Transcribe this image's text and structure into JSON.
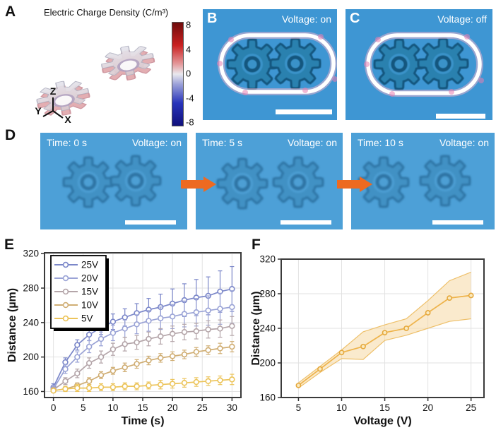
{
  "colors": {
    "micro_bg": "#3e96d3",
    "micro_bg_d": "#4da0d7",
    "gear_body": "#2a81af",
    "gear_edge": "#14567e",
    "ring_white": "#ffffff",
    "ring_pink": "#f2b3cd",
    "arrow_orange": "#ed6a21",
    "axis_dark": "#3a3a3a"
  },
  "panelA": {
    "label": "A",
    "title": "Electric Charge Density (C/m³)",
    "colorbar_ticks": [
      "8",
      "4",
      "0",
      "-4",
      "-8"
    ],
    "triad": {
      "up": "Z",
      "left": "Y",
      "right": "X"
    }
  },
  "panelB": {
    "label": "B",
    "status": "Voltage: on"
  },
  "panelC": {
    "label": "C",
    "status": "Voltage: off"
  },
  "panelD": {
    "label": "D",
    "frames": [
      {
        "time": "Time: 0 s",
        "status": "Voltage: on"
      },
      {
        "time": "Time: 5 s",
        "status": "Voltage: on"
      },
      {
        "time": "Time: 10 s",
        "status": "Voltage: on"
      }
    ]
  },
  "panelE": {
    "label": "E"
  },
  "panelF": {
    "label": "F"
  },
  "chart_data": [
    {
      "id": "E",
      "type": "line",
      "title": "",
      "xlabel": "Time (s)",
      "ylabel": "Distance (µm)",
      "xlim": [
        -1.5,
        31.5
      ],
      "ylim": [
        153,
        321
      ],
      "xticks": [
        0,
        5,
        10,
        15,
        20,
        25,
        30
      ],
      "yticks": [
        160,
        200,
        240,
        280,
        320
      ],
      "grid": true,
      "legend_position": "top-left",
      "marker": "open",
      "x": [
        0,
        2,
        4,
        6,
        8,
        10,
        12,
        14,
        16,
        18,
        20,
        22,
        24,
        26,
        28,
        30
      ],
      "series": [
        {
          "name": "25V",
          "color": "#7b87c9",
          "values": [
            165,
            194,
            214,
            226,
            234,
            241,
            246,
            251,
            255,
            258,
            262,
            266,
            269,
            271,
            276,
            279
          ],
          "yerr": [
            4,
            5,
            6,
            7,
            8,
            9,
            10,
            11,
            13,
            15,
            17,
            19,
            21,
            22,
            24,
            26
          ]
        },
        {
          "name": "20V",
          "color": "#9aa3d6",
          "values": [
            163,
            186,
            200,
            212,
            221,
            228,
            233,
            238,
            242,
            245,
            247,
            250,
            252,
            254,
            256,
            258
          ],
          "yerr": [
            4,
            5,
            6,
            7,
            8,
            9,
            10,
            11,
            12,
            13,
            14,
            15,
            16,
            17,
            18,
            19
          ]
        },
        {
          "name": "15V",
          "color": "#b4a5a9",
          "values": [
            162,
            172,
            181,
            193,
            200,
            209,
            215,
            217,
            221,
            224,
            227,
            229,
            230,
            232,
            233,
            236
          ],
          "yerr": [
            3,
            4,
            5,
            6,
            7,
            7,
            8,
            8,
            8,
            9,
            9,
            9,
            9,
            10,
            10,
            11
          ]
        },
        {
          "name": "10V",
          "color": "#d0ae74",
          "values": [
            161,
            163,
            167,
            172,
            179,
            184,
            188,
            192,
            196,
            199,
            201,
            203,
            206,
            208,
            210,
            212
          ],
          "yerr": [
            2,
            3,
            3,
            4,
            4,
            4,
            5,
            5,
            5,
            5,
            5,
            5,
            5,
            5,
            6,
            6
          ]
        },
        {
          "name": "5V",
          "color": "#ecc45a",
          "values": [
            161,
            163,
            164,
            164,
            165,
            165,
            166,
            166,
            167,
            168,
            169,
            170,
            171,
            172,
            173,
            174
          ],
          "yerr": [
            2,
            3,
            4,
            4,
            4,
            4,
            4,
            4,
            4,
            5,
            5,
            5,
            5,
            5,
            5,
            6
          ]
        }
      ]
    },
    {
      "id": "F",
      "type": "line",
      "title": "",
      "xlabel": "Voltage (V)",
      "ylabel": "Distance (µm)",
      "xlim": [
        3,
        26.5
      ],
      "ylim": [
        160,
        320
      ],
      "xticks": [
        5,
        10,
        15,
        20,
        25
      ],
      "yticks": [
        160,
        200,
        240,
        280,
        320
      ],
      "grid": true,
      "marker": "filled",
      "x": [
        5,
        7.5,
        10,
        12.5,
        15,
        17.5,
        20,
        22.5,
        25
      ],
      "series": [
        {
          "name": "distance",
          "color": "#eeb34a",
          "values": [
            174,
            193,
            212,
            219,
            235,
            240,
            258,
            275,
            278
          ],
          "band_lower": [
            171,
            189,
            205,
            204,
            226,
            232,
            240,
            248,
            251
          ],
          "band_upper": [
            177,
            196,
            215,
            236,
            244,
            251,
            272,
            295,
            305
          ],
          "band_color": "#f6d9a4",
          "band_edge": "#eec06a"
        }
      ]
    }
  ]
}
